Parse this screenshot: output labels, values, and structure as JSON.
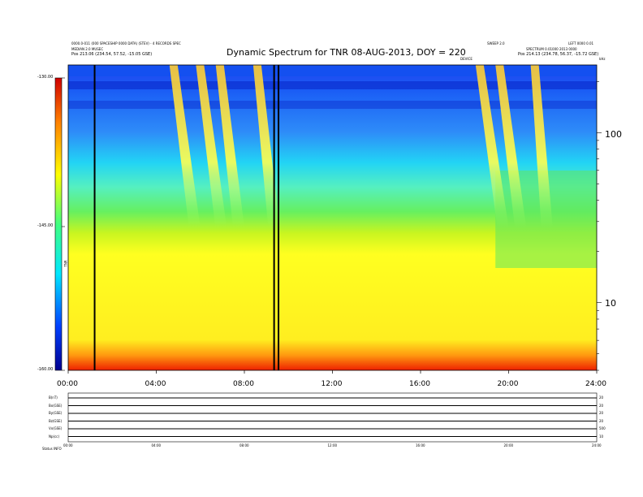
{
  "header": {
    "title": "Dynamic Spectrum for TNR 08-AUG-2013, DOY = 220",
    "left_line1": "0000.0-011 (000 SPACESHIP 0000 DATA) (STEV) - 4 RECORDS SPEC",
    "left_line2": "MEDIAN 2.0 MUSEC",
    "left_pos": "Pos  213.06 (234.54, 57.52, -15.05 GSE)",
    "right_line1": "SWEEP 2.0",
    "right_line2": "LEFT 0000 0.01",
    "right_line3": "SPECTRUM 0.01000 2013 0000",
    "right_pos": "Pos  214.13 (234.78, 56.37, -15.72 GSE)",
    "right_small": "DEVICE",
    "khz_label": "kHz"
  },
  "chart_data": [
    {
      "type": "heatmap",
      "title": "Dynamic Spectrum for TNR 08-AUG-2013, DOY = 220",
      "x_ticks": [
        "00:00",
        "04:00",
        "08:00",
        "12:00",
        "16:00",
        "20:00",
        "24:00"
      ],
      "x_range_hours": [
        0,
        24
      ],
      "y_unit": "kHz",
      "y_scale": "log",
      "y_range_khz": [
        4,
        250
      ],
      "y_ticks": [
        10,
        100
      ],
      "colorbar": {
        "label": "TNR",
        "ticks": [
          "-130.00",
          "-145.00",
          "-160.00"
        ],
        "range": [
          -160,
          -130
        ],
        "colors": [
          "#000090",
          "#0040ff",
          "#00e8ff",
          "#40ff80",
          "#ffff00",
          "#ff8000",
          "#d00000"
        ]
      },
      "data_gap_lines_hours": [
        1.2,
        9.35,
        9.55
      ],
      "bursts": [
        {
          "start_h": 4.6,
          "end_h": 6.0
        },
        {
          "start_h": 5.8,
          "end_h": 7.2
        },
        {
          "start_h": 6.7,
          "end_h": 8.0
        },
        {
          "start_h": 8.4,
          "end_h": 9.6
        },
        {
          "start_h": 18.5,
          "end_h": 20.0
        },
        {
          "start_h": 19.4,
          "end_h": 20.8
        },
        {
          "start_h": 21.0,
          "end_h": 22.0
        }
      ]
    },
    {
      "type": "line",
      "panel": "solar wind parameters",
      "rows": [
        {
          "label": "B(nT)",
          "right_label": "20"
        },
        {
          "label": "Bx(GSE)",
          "right_label": "20"
        },
        {
          "label": "By(GSE)",
          "right_label": "20"
        },
        {
          "label": "Bz(GSE)",
          "right_label": "20"
        },
        {
          "label": "Vx(GSE)",
          "right_label": "500"
        },
        {
          "label": "Np(cc)",
          "right_label": "10"
        }
      ],
      "x_ticks": [
        "00:00",
        "04:00",
        "08:00",
        "12:00",
        "16:00",
        "20:00",
        "24:00"
      ],
      "footer_label": "Status  INFO"
    }
  ]
}
